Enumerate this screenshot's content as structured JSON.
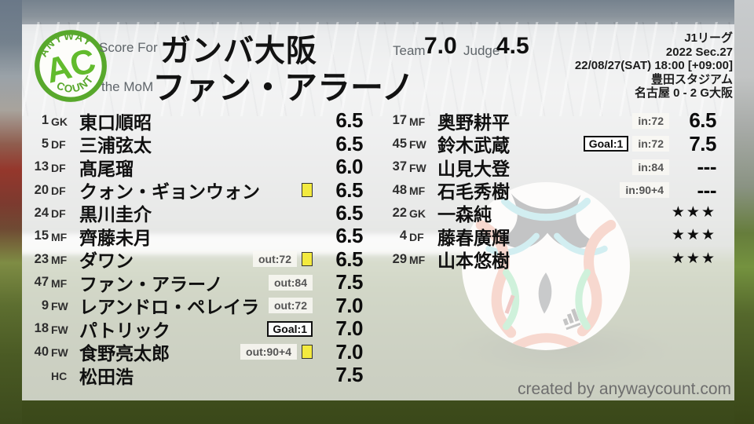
{
  "logo": {
    "arc_top": "ANYWAY",
    "monogram": "AC",
    "arc_bottom": "COUNT"
  },
  "header": {
    "score_for_label": "Score For",
    "team_name": "ガンバ大阪",
    "mom_label": "the MoM",
    "mom_name": "ファン・アラーノ",
    "team_label": "Team",
    "team_score": "7.0",
    "judge_label": "Judge",
    "judge_score": "4.5"
  },
  "match_info": {
    "league": "J1リーグ",
    "season": "2022 Sec.27",
    "kickoff": "22/08/27(SAT) 18:00 [+09:00]",
    "venue": "豊田スタジアム",
    "result": "名古屋 0 - 2 G大阪"
  },
  "footer": {
    "credit": "created by anywaycount.com"
  },
  "colors": {
    "logo_green": "#58a82c",
    "yellow_card": "#f3ea3f",
    "badge_text": "#555555",
    "rating_text": "#0d0d0d"
  },
  "chart_data": {
    "type": "table",
    "title": "Score For ガンバ大阪",
    "subtitle": "the MoM ファン・アラーノ",
    "team_average": "7.0",
    "judge_rating": "4.5",
    "columns": [
      "number",
      "position",
      "name",
      "events",
      "yellow_card",
      "rating"
    ],
    "groups": [
      {
        "name": "starters",
        "rows": [
          {
            "num": "1",
            "pos": "GK",
            "name": "東口順昭",
            "events": [],
            "yellow": false,
            "rating": "6.5"
          },
          {
            "num": "5",
            "pos": "DF",
            "name": "三浦弦太",
            "events": [],
            "yellow": false,
            "rating": "6.5"
          },
          {
            "num": "13",
            "pos": "DF",
            "name": "髙尾瑠",
            "events": [],
            "yellow": false,
            "rating": "6.0"
          },
          {
            "num": "20",
            "pos": "DF",
            "name": "クォン・ギョンウォン",
            "events": [],
            "yellow": true,
            "rating": "6.5"
          },
          {
            "num": "24",
            "pos": "DF",
            "name": "黒川圭介",
            "events": [],
            "yellow": false,
            "rating": "6.5"
          },
          {
            "num": "15",
            "pos": "MF",
            "name": "齊藤未月",
            "events": [],
            "yellow": false,
            "rating": "6.5"
          },
          {
            "num": "23",
            "pos": "MF",
            "name": "ダワン",
            "events": [
              {
                "style": "plain",
                "text": "out:72"
              }
            ],
            "yellow": true,
            "rating": "6.5"
          },
          {
            "num": "47",
            "pos": "MF",
            "name": "ファン・アラーノ",
            "events": [
              {
                "style": "plain",
                "text": "out:84"
              }
            ],
            "yellow": false,
            "rating": "7.5"
          },
          {
            "num": "9",
            "pos": "FW",
            "name": "レアンドロ・ペレイラ",
            "events": [
              {
                "style": "plain",
                "text": "out:72"
              }
            ],
            "yellow": false,
            "rating": "7.0"
          },
          {
            "num": "18",
            "pos": "FW",
            "name": "パトリック",
            "events": [
              {
                "style": "boxed",
                "text": "Goal:1"
              }
            ],
            "yellow": false,
            "rating": "7.0"
          },
          {
            "num": "40",
            "pos": "FW",
            "name": "食野亮太郎",
            "events": [
              {
                "style": "plain",
                "text": "out:90+4"
              }
            ],
            "yellow": true,
            "rating": "7.0"
          },
          {
            "num": "",
            "pos": "HC",
            "name": "松田浩",
            "events": [],
            "yellow": false,
            "rating": "7.5"
          }
        ]
      },
      {
        "name": "substitutes",
        "rows": [
          {
            "num": "17",
            "pos": "MF",
            "name": "奥野耕平",
            "events": [
              {
                "style": "plain",
                "text": "in:72"
              }
            ],
            "yellow": false,
            "rating": "6.5"
          },
          {
            "num": "45",
            "pos": "FW",
            "name": "鈴木武蔵",
            "events": [
              {
                "style": "boxed",
                "text": "Goal:1"
              },
              {
                "style": "plain",
                "text": "in:72"
              }
            ],
            "yellow": false,
            "rating": "7.5"
          },
          {
            "num": "37",
            "pos": "FW",
            "name": "山見大登",
            "events": [
              {
                "style": "plain",
                "text": "in:84"
              }
            ],
            "yellow": false,
            "rating": "---"
          },
          {
            "num": "48",
            "pos": "MF",
            "name": "石毛秀樹",
            "events": [
              {
                "style": "plain",
                "text": "in:90+4"
              }
            ],
            "yellow": false,
            "rating": "---"
          },
          {
            "num": "22",
            "pos": "GK",
            "name": "一森純",
            "events": [],
            "yellow": false,
            "rating": "★★★"
          },
          {
            "num": "4",
            "pos": "DF",
            "name": "藤春廣輝",
            "events": [],
            "yellow": false,
            "rating": "★★★"
          },
          {
            "num": "29",
            "pos": "MF",
            "name": "山本悠樹",
            "events": [],
            "yellow": false,
            "rating": "★★★"
          }
        ]
      }
    ]
  }
}
